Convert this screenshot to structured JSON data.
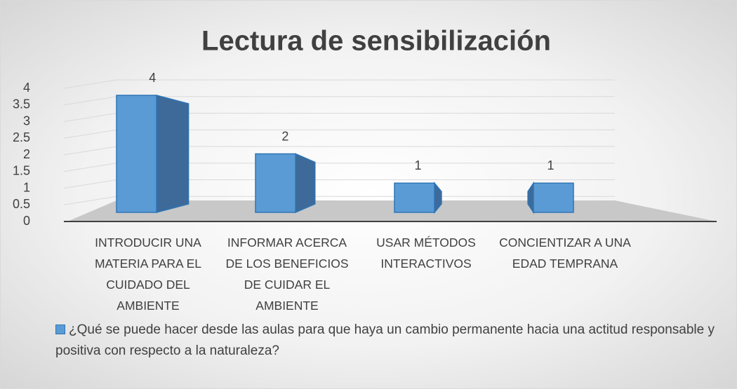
{
  "chart_data": {
    "type": "bar3d",
    "title": "Lectura de sensibilización",
    "categories": [
      "INTRODUCIR UNA MATERIA PARA EL CUIDADO DEL AMBIENTE",
      "INFORMAR ACERCA DE LOS BENEFICIOS DE CUIDAR EL AMBIENTE",
      "USAR MÉTODOS INTERACTIVOS",
      "CONCIENTIZAR A UNA EDAD TEMPRANA"
    ],
    "series": [
      {
        "name": "¿Qué se puede hacer desde las aulas para que haya un cambio permanente hacia una actitud responsable y positiva con respecto a la naturaleza?",
        "color": "#5b9bd5",
        "values": [
          4,
          2,
          1,
          1
        ]
      }
    ],
    "ylim": [
      0,
      4
    ],
    "yticks": [
      0,
      0.5,
      1,
      1.5,
      2,
      2.5,
      3,
      3.5,
      4
    ],
    "grid": true,
    "legend": "bottom"
  }
}
